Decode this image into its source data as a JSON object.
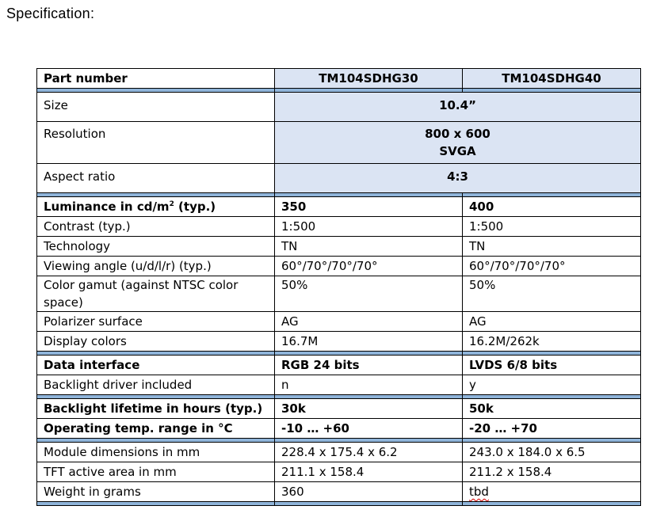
{
  "heading": "Specification:",
  "table": {
    "header": {
      "label": "Part number",
      "col1": "TM104SDHG30",
      "col2": "TM104SDHG40"
    },
    "size": {
      "label": "Size",
      "value": "10.4”"
    },
    "resolution": {
      "label": "Resolution",
      "value1": "800 x 600",
      "value2": "SVGA"
    },
    "aspect": {
      "label": "Aspect ratio",
      "value": "4:3"
    },
    "luminance": {
      "label_pre": "Luminance in cd/m",
      "label_sup": "2",
      "label_post": " (typ.)",
      "col1": "350",
      "col2": "400"
    },
    "contrast": {
      "label": "Contrast (typ.)",
      "col1": "1:500",
      "col2": "1:500"
    },
    "technology": {
      "label": "Technology",
      "col1": "TN",
      "col2": "TN"
    },
    "viewing": {
      "label": "Viewing angle (u/d/l/r) (typ.)",
      "col1": "60°/70°/70°/70°",
      "col2": "60°/70°/70°/70°"
    },
    "gamut": {
      "label_line1": "Color gamut (against NTSC color",
      "label_line2": "space)",
      "col1": "50%",
      "col2": "50%"
    },
    "polarizer": {
      "label": "Polarizer surface",
      "col1": "AG",
      "col2": "AG"
    },
    "colors": {
      "label": "Display colors",
      "col1": "16.7M",
      "col2": "16.2M/262k"
    },
    "interface": {
      "label": "Data interface",
      "col1": "RGB 24 bits",
      "col2": "LVDS 6/8 bits"
    },
    "driver": {
      "label": "Backlight driver included",
      "col1": "n",
      "col2": "y"
    },
    "lifetime": {
      "label": "Backlight lifetime in hours (typ.)",
      "col1": "30k",
      "col2": "50k"
    },
    "temp": {
      "label": "Operating temp. range in °C",
      "col1": "-10 … +60",
      "col2": "-20 … +70"
    },
    "dimensions": {
      "label": "Module dimensions in mm",
      "col1": "228.4 x 175.4 x 6.2",
      "col2": "243.0 x 184.0 x 6.5"
    },
    "active": {
      "label": "TFT active area in mm",
      "col1": "211.1 x 158.4",
      "col2": "211.2 x 158.4"
    },
    "weight": {
      "label": "Weight in grams",
      "col1": "360",
      "col2": "tbd"
    }
  },
  "colors": {
    "header_fill": "#dbe4f3",
    "separator_fill": "#8fb4d9"
  }
}
